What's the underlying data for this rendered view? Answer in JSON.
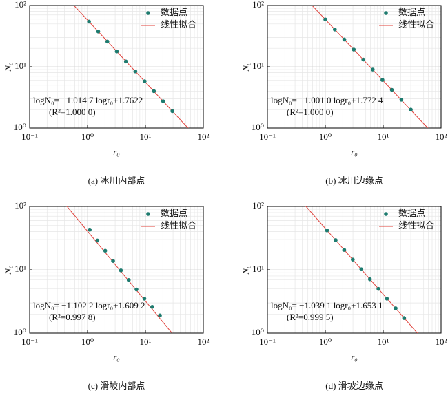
{
  "chart_data": [
    {
      "type": "scatter",
      "caption": "(a) 冰川内部点",
      "xlabel": "r₀",
      "ylabel": "N₀",
      "log": true,
      "grid": true,
      "legend": "upper right",
      "xlim": [
        0.1,
        100
      ],
      "ylim": [
        1,
        100
      ],
      "xticks": [
        {
          "value": 0.1,
          "label": "10⁻¹"
        },
        {
          "value": 1,
          "label": "10⁰"
        },
        {
          "value": 10,
          "label": "10¹"
        },
        {
          "value": 100,
          "label": "10²"
        }
      ],
      "yticks": [
        {
          "value": 1,
          "label": "10⁰"
        },
        {
          "value": 10,
          "label": "10¹"
        },
        {
          "value": 100,
          "label": "10²"
        }
      ],
      "series": [
        {
          "name": "数据点",
          "color": "#1e7b6f",
          "x": [
            1.06,
            1.53,
            2.2,
            3.2,
            4.6,
            6.7,
            9.7,
            14,
            20.2,
            29.2
          ],
          "values": [
            54.6,
            37.6,
            25.8,
            17.8,
            12.2,
            8.4,
            5.8,
            4.0,
            2.74,
            1.89
          ]
        }
      ],
      "fit": {
        "name": "线性拟合",
        "color": "#e0403a",
        "slope": -1.0147,
        "intercept": 1.7622
      },
      "annotations": [
        "logN₀= −1.014 7 logr₀+1.7622",
        "(R²=1.000 0)"
      ]
    },
    {
      "type": "scatter",
      "caption": "(b) 冰川边缘点",
      "xlabel": "r₀",
      "ylabel": "N₀",
      "log": true,
      "grid": true,
      "legend": "upper right",
      "xlim": [
        0.1,
        100
      ],
      "ylim": [
        1,
        100
      ],
      "xticks": [
        {
          "value": 0.1,
          "label": "10⁻¹"
        },
        {
          "value": 1,
          "label": "10⁰"
        },
        {
          "value": 10,
          "label": "10¹"
        },
        {
          "value": 100,
          "label": "10²"
        }
      ],
      "yticks": [
        {
          "value": 1,
          "label": "10⁰"
        },
        {
          "value": 10,
          "label": "10¹"
        },
        {
          "value": 100,
          "label": "10²"
        }
      ],
      "series": [
        {
          "name": "数据点",
          "color": "#1e7b6f",
          "x": [
            1.0,
            1.46,
            2.13,
            3.1,
            4.54,
            6.6,
            9.7,
            14.1,
            20.6,
            30.0
          ],
          "values": [
            59.2,
            40.6,
            27.8,
            19.1,
            13.1,
            9.0,
            6.1,
            4.2,
            2.9,
            2.0
          ]
        }
      ],
      "fit": {
        "name": "线性拟合",
        "color": "#e0403a",
        "slope": -1.001,
        "intercept": 1.7724
      },
      "annotations": [
        "logN₀= −1.001 0 logr₀+1.772 4",
        "(R²=1.000 0)"
      ]
    },
    {
      "type": "scatter",
      "caption": "(c) 滑坡内部点",
      "xlabel": "r₀",
      "ylabel": "N₀",
      "log": true,
      "grid": true,
      "legend": "upper right",
      "xlim": [
        0.1,
        100
      ],
      "ylim": [
        1,
        100
      ],
      "xticks": [
        {
          "value": 0.1,
          "label": "10⁻¹"
        },
        {
          "value": 1,
          "label": "10⁰"
        },
        {
          "value": 10,
          "label": "10¹"
        },
        {
          "value": 100,
          "label": "10²"
        }
      ],
      "yticks": [
        {
          "value": 1,
          "label": "10⁰"
        },
        {
          "value": 10,
          "label": "10¹"
        },
        {
          "value": 100,
          "label": "10²"
        }
      ],
      "series": [
        {
          "name": "数据点",
          "color": "#1e7b6f",
          "x": [
            1.09,
            1.48,
            2.02,
            2.76,
            3.77,
            5.14,
            7.0,
            9.6,
            13.1,
            17.8
          ],
          "values": [
            43,
            29,
            20,
            13.8,
            9.8,
            6.9,
            4.9,
            3.5,
            2.6,
            1.9
          ]
        }
      ],
      "fit": {
        "name": "线性拟合",
        "color": "#e0403a",
        "slope": -1.1022,
        "intercept": 1.6092
      },
      "annotations": [
        "logN₀= −1.102 2 logr₀+1.609 2",
        "(R²=0.997 8)"
      ]
    },
    {
      "type": "scatter",
      "caption": "(d) 滑坡边缘点",
      "xlabel": "r₀",
      "ylabel": "N₀",
      "log": true,
      "grid": true,
      "legend": "upper right",
      "xlim": [
        0.1,
        100
      ],
      "ylim": [
        1,
        100
      ],
      "xticks": [
        {
          "value": 0.1,
          "label": "10⁻¹"
        },
        {
          "value": 1,
          "label": "10⁰"
        },
        {
          "value": 10,
          "label": "10¹"
        },
        {
          "value": 100,
          "label": "10²"
        }
      ],
      "yticks": [
        {
          "value": 1,
          "label": "10⁰"
        },
        {
          "value": 10,
          "label": "10¹"
        },
        {
          "value": 100,
          "label": "10²"
        }
      ],
      "series": [
        {
          "name": "数据点",
          "color": "#1e7b6f",
          "x": [
            1.07,
            1.51,
            2.12,
            2.98,
            4.19,
            5.89,
            8.28,
            11.6,
            16.4,
            23.0
          ],
          "values": [
            41.9,
            29.4,
            20.6,
            14.5,
            10.2,
            7.1,
            5.0,
            3.5,
            2.47,
            1.73
          ]
        }
      ],
      "fit": {
        "name": "线性拟合",
        "color": "#e0403a",
        "slope": -1.0391,
        "intercept": 1.6531
      },
      "annotations": [
        "logN₀= −1.039 1 logr₀+1.653 1",
        "(R²=0.999 5)"
      ]
    }
  ]
}
